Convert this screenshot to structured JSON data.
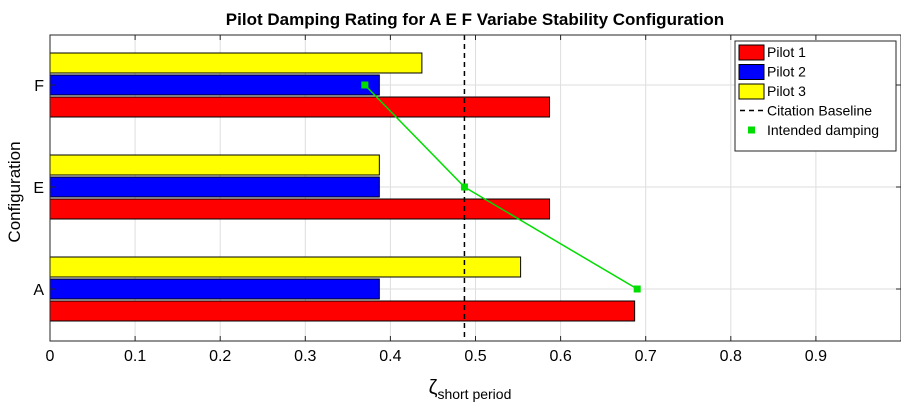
{
  "chart_data": {
    "type": "bar",
    "orientation": "horizontal",
    "title": "Pilot Damping Rating for A E F Variabe Stability Configuration",
    "ylabel": "Configuration",
    "xlabel": {
      "symbol": "ζ",
      "subscript": "short period"
    },
    "categories": [
      "A",
      "E",
      "F"
    ],
    "series": [
      {
        "name": "Pilot 1",
        "color": "#ff0000",
        "values": [
          0.687,
          0.587,
          0.587
        ]
      },
      {
        "name": "Pilot 2",
        "color": "#0000ff",
        "values": [
          0.387,
          0.387,
          0.387
        ]
      },
      {
        "name": "Pilot 3",
        "color": "#ffff00",
        "values": [
          0.553,
          0.387,
          0.437
        ]
      }
    ],
    "reference_line": {
      "name": "Citation Baseline",
      "x": 0.487,
      "style": "dashed",
      "color": "#000000"
    },
    "intended": {
      "name": "Intended damping",
      "color": "#00dd00",
      "points": [
        {
          "category": "A",
          "x": 0.69
        },
        {
          "category": "E",
          "x": 0.487
        },
        {
          "category": "F",
          "x": 0.37
        }
      ]
    },
    "xlim": [
      0,
      1
    ],
    "xticks": [
      "0",
      "0.1",
      "0.2",
      "0.3",
      "0.4",
      "0.5",
      "0.6",
      "0.7",
      "0.8",
      "0.9"
    ],
    "grid": true,
    "legend_position": "top-right"
  }
}
